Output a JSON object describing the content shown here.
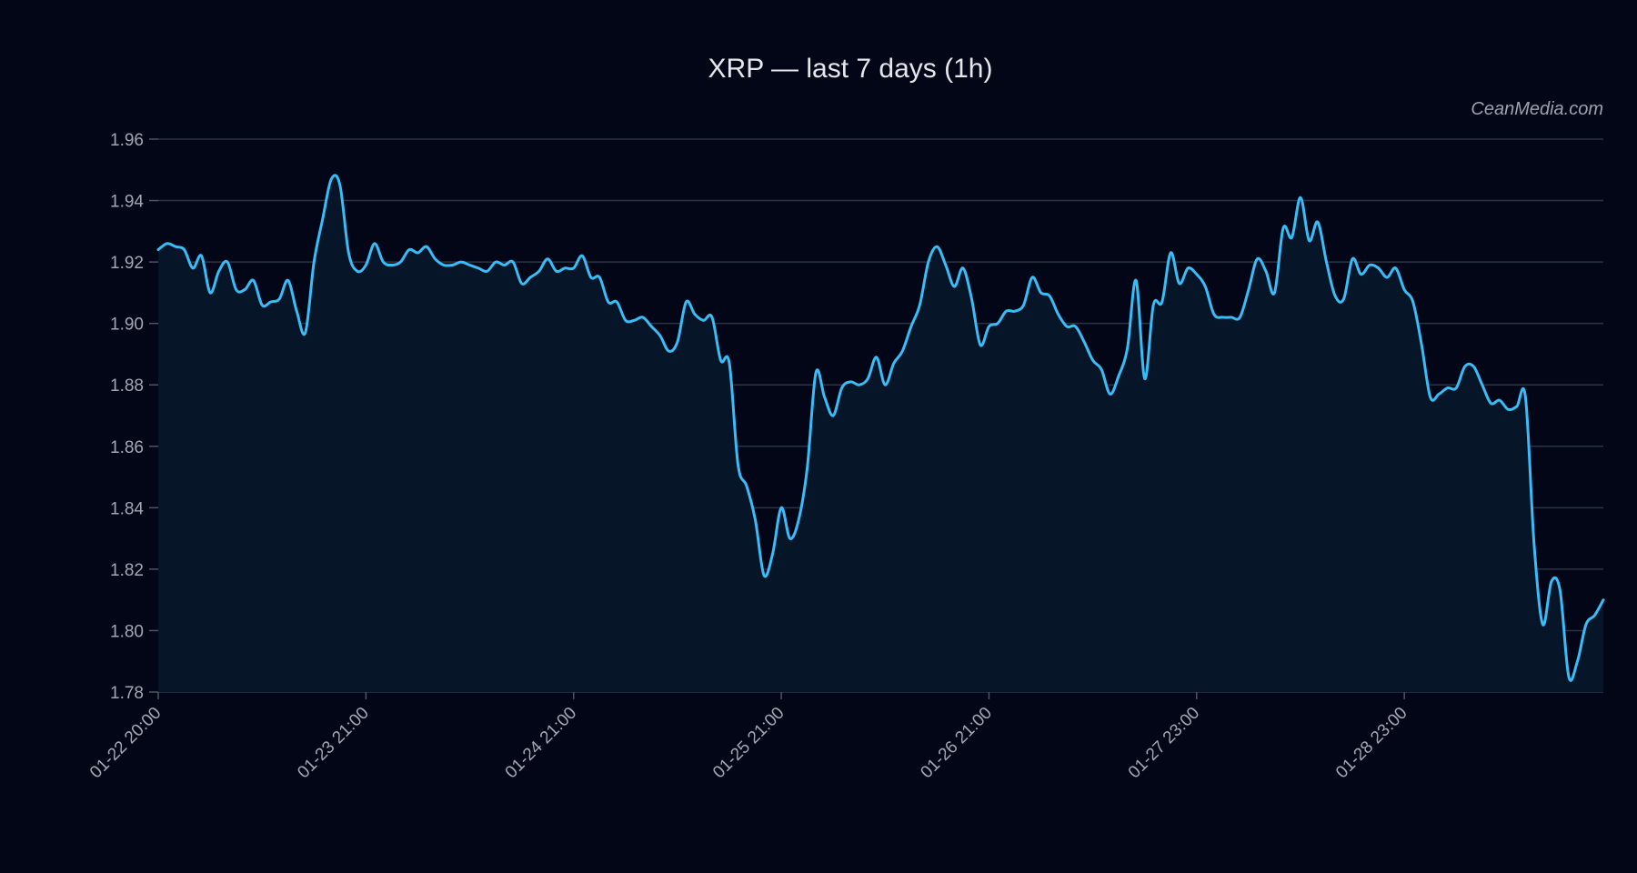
{
  "chart_data": {
    "type": "area",
    "title": "XRP — last 7 days (1h)",
    "watermark": "CeanMedia.com",
    "xlabel": "",
    "ylabel": "",
    "ylim": [
      1.78,
      1.96
    ],
    "yticks": [
      "1.78",
      "1.80",
      "1.82",
      "1.84",
      "1.86",
      "1.88",
      "1.90",
      "1.92",
      "1.94",
      "1.96"
    ],
    "xticks": [
      {
        "index": 0,
        "label": "01-22 20:00"
      },
      {
        "index": 24,
        "label": "01-23 21:00"
      },
      {
        "index": 48,
        "label": "01-24 21:00"
      },
      {
        "index": 72,
        "label": "01-25 21:00"
      },
      {
        "index": 96,
        "label": "01-26 21:00"
      },
      {
        "index": 120,
        "label": "01-27 23:00"
      },
      {
        "index": 144,
        "label": "01-28 23:00"
      }
    ],
    "grid": true,
    "colors": {
      "line": "#38bdf8",
      "fill": "#061528",
      "background": "#020617",
      "grid": "#2a3444"
    },
    "values": [
      1.924,
      1.926,
      1.925,
      1.924,
      1.918,
      1.922,
      1.91,
      1.917,
      1.92,
      1.911,
      1.911,
      1.914,
      1.906,
      1.907,
      1.908,
      1.914,
      1.904,
      1.897,
      1.92,
      1.934,
      1.947,
      1.945,
      1.923,
      1.917,
      1.919,
      1.926,
      1.92,
      1.919,
      1.92,
      1.924,
      1.923,
      1.925,
      1.921,
      1.919,
      1.919,
      1.92,
      1.919,
      1.918,
      1.917,
      1.92,
      1.919,
      1.92,
      1.913,
      1.915,
      1.917,
      1.921,
      1.917,
      1.918,
      1.918,
      1.922,
      1.915,
      1.915,
      1.907,
      1.907,
      1.901,
      1.901,
      1.902,
      1.899,
      1.896,
      1.891,
      1.894,
      1.907,
      1.903,
      1.901,
      1.902,
      1.888,
      1.887,
      1.854,
      1.847,
      1.836,
      1.818,
      1.825,
      1.84,
      1.83,
      1.836,
      1.853,
      1.884,
      1.876,
      1.87,
      1.879,
      1.881,
      1.88,
      1.882,
      1.889,
      1.88,
      1.887,
      1.891,
      1.899,
      1.906,
      1.92,
      1.925,
      1.919,
      1.912,
      1.918,
      1.908,
      1.893,
      1.899,
      1.9,
      1.904,
      1.904,
      1.906,
      1.915,
      1.91,
      1.909,
      1.903,
      1.899,
      1.899,
      1.894,
      1.888,
      1.885,
      1.877,
      1.883,
      1.892,
      1.914,
      1.882,
      1.906,
      1.907,
      1.923,
      1.913,
      1.918,
      1.916,
      1.912,
      1.903,
      1.902,
      1.902,
      1.902,
      1.911,
      1.921,
      1.917,
      1.91,
      1.931,
      1.928,
      1.941,
      1.927,
      1.933,
      1.92,
      1.909,
      1.908,
      1.921,
      1.916,
      1.919,
      1.918,
      1.915,
      1.918,
      1.911,
      1.907,
      1.893,
      1.876,
      1.877,
      1.879,
      1.879,
      1.886,
      1.886,
      1.88,
      1.874,
      1.875,
      1.872,
      1.873,
      1.876,
      1.828,
      1.802,
      1.816,
      1.813,
      1.785,
      1.79,
      1.802,
      1.805,
      1.81
    ]
  }
}
